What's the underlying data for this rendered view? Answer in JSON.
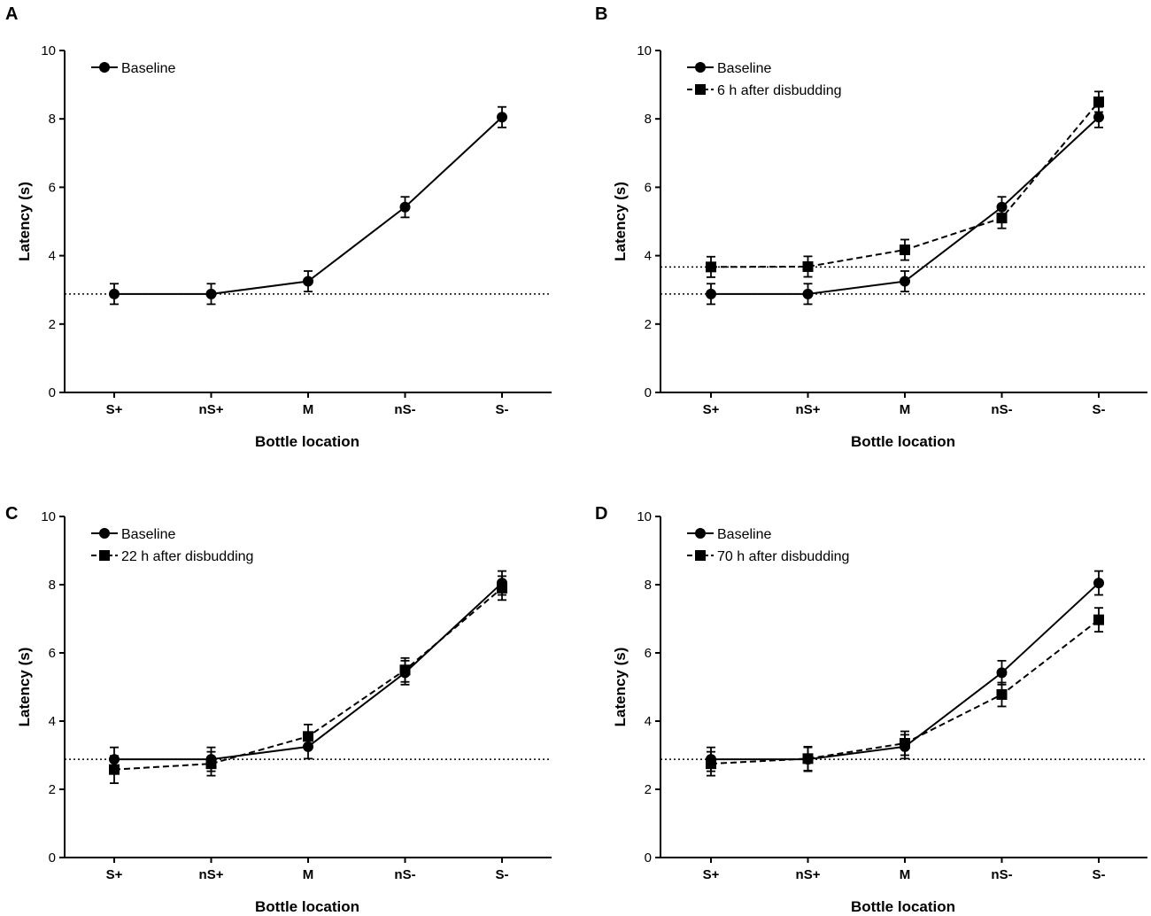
{
  "chart_data": [
    {
      "panel": "A",
      "type": "line",
      "categories": [
        "S+",
        "nS+",
        "M",
        "nS-",
        "S-"
      ],
      "xlabel": "Bottle location",
      "ylabel": "Latency (s)",
      "ylim": [
        0,
        10
      ],
      "yticks": [
        "0",
        "2",
        "4",
        "6",
        "8",
        "10"
      ],
      "reference_lines": [
        2.88
      ],
      "series": [
        {
          "name": "Baseline",
          "marker": "circle",
          "dash": "solid",
          "values": [
            2.88,
            2.88,
            3.25,
            5.42,
            8.05
          ],
          "errors": [
            0.3,
            0.3,
            0.3,
            0.3,
            0.3
          ]
        }
      ]
    },
    {
      "panel": "B",
      "type": "line",
      "categories": [
        "S+",
        "nS+",
        "M",
        "nS-",
        "S-"
      ],
      "xlabel": "Bottle location",
      "ylabel": "Latency (s)",
      "ylim": [
        0,
        10
      ],
      "yticks": [
        "0",
        "2",
        "4",
        "6",
        "8",
        "10"
      ],
      "reference_lines": [
        2.88,
        3.67
      ],
      "series": [
        {
          "name": "Baseline",
          "marker": "circle",
          "dash": "solid",
          "values": [
            2.88,
            2.88,
            3.25,
            5.42,
            8.05
          ],
          "errors": [
            0.3,
            0.3,
            0.3,
            0.3,
            0.3
          ]
        },
        {
          "name": "6 h after disbudding",
          "marker": "square",
          "dash": "dashed",
          "values": [
            3.67,
            3.68,
            4.17,
            5.1,
            8.5
          ],
          "errors": [
            0.3,
            0.3,
            0.3,
            0.3,
            0.3
          ]
        }
      ]
    },
    {
      "panel": "C",
      "type": "line",
      "categories": [
        "S+",
        "nS+",
        "M",
        "nS-",
        "S-"
      ],
      "xlabel": "Bottle location",
      "ylabel": "Latency (s)",
      "ylim": [
        0,
        10
      ],
      "yticks": [
        "0",
        "2",
        "4",
        "6",
        "8",
        "10"
      ],
      "reference_lines": [
        2.88
      ],
      "series": [
        {
          "name": "Baseline",
          "marker": "circle",
          "dash": "solid",
          "values": [
            2.88,
            2.88,
            3.25,
            5.42,
            8.05
          ],
          "errors": [
            0.35,
            0.35,
            0.35,
            0.35,
            0.35
          ]
        },
        {
          "name": "22 h after disbudding",
          "marker": "square",
          "dash": "dashed",
          "values": [
            2.58,
            2.75,
            3.55,
            5.5,
            7.9
          ],
          "errors": [
            0.4,
            0.35,
            0.35,
            0.35,
            0.35
          ]
        }
      ]
    },
    {
      "panel": "D",
      "type": "line",
      "categories": [
        "S+",
        "nS+",
        "M",
        "nS-",
        "S-"
      ],
      "xlabel": "Bottle location",
      "ylabel": "Latency (s)",
      "ylim": [
        0,
        10
      ],
      "yticks": [
        "0",
        "2",
        "4",
        "6",
        "8",
        "10"
      ],
      "reference_lines": [
        2.88
      ],
      "series": [
        {
          "name": "Baseline",
          "marker": "circle",
          "dash": "solid",
          "values": [
            2.88,
            2.88,
            3.25,
            5.42,
            8.05
          ],
          "errors": [
            0.35,
            0.35,
            0.35,
            0.35,
            0.35
          ]
        },
        {
          "name": "70 h after disbudding",
          "marker": "square",
          "dash": "dashed",
          "values": [
            2.75,
            2.9,
            3.35,
            4.78,
            6.97
          ],
          "errors": [
            0.35,
            0.35,
            0.35,
            0.35,
            0.35
          ]
        }
      ]
    }
  ]
}
